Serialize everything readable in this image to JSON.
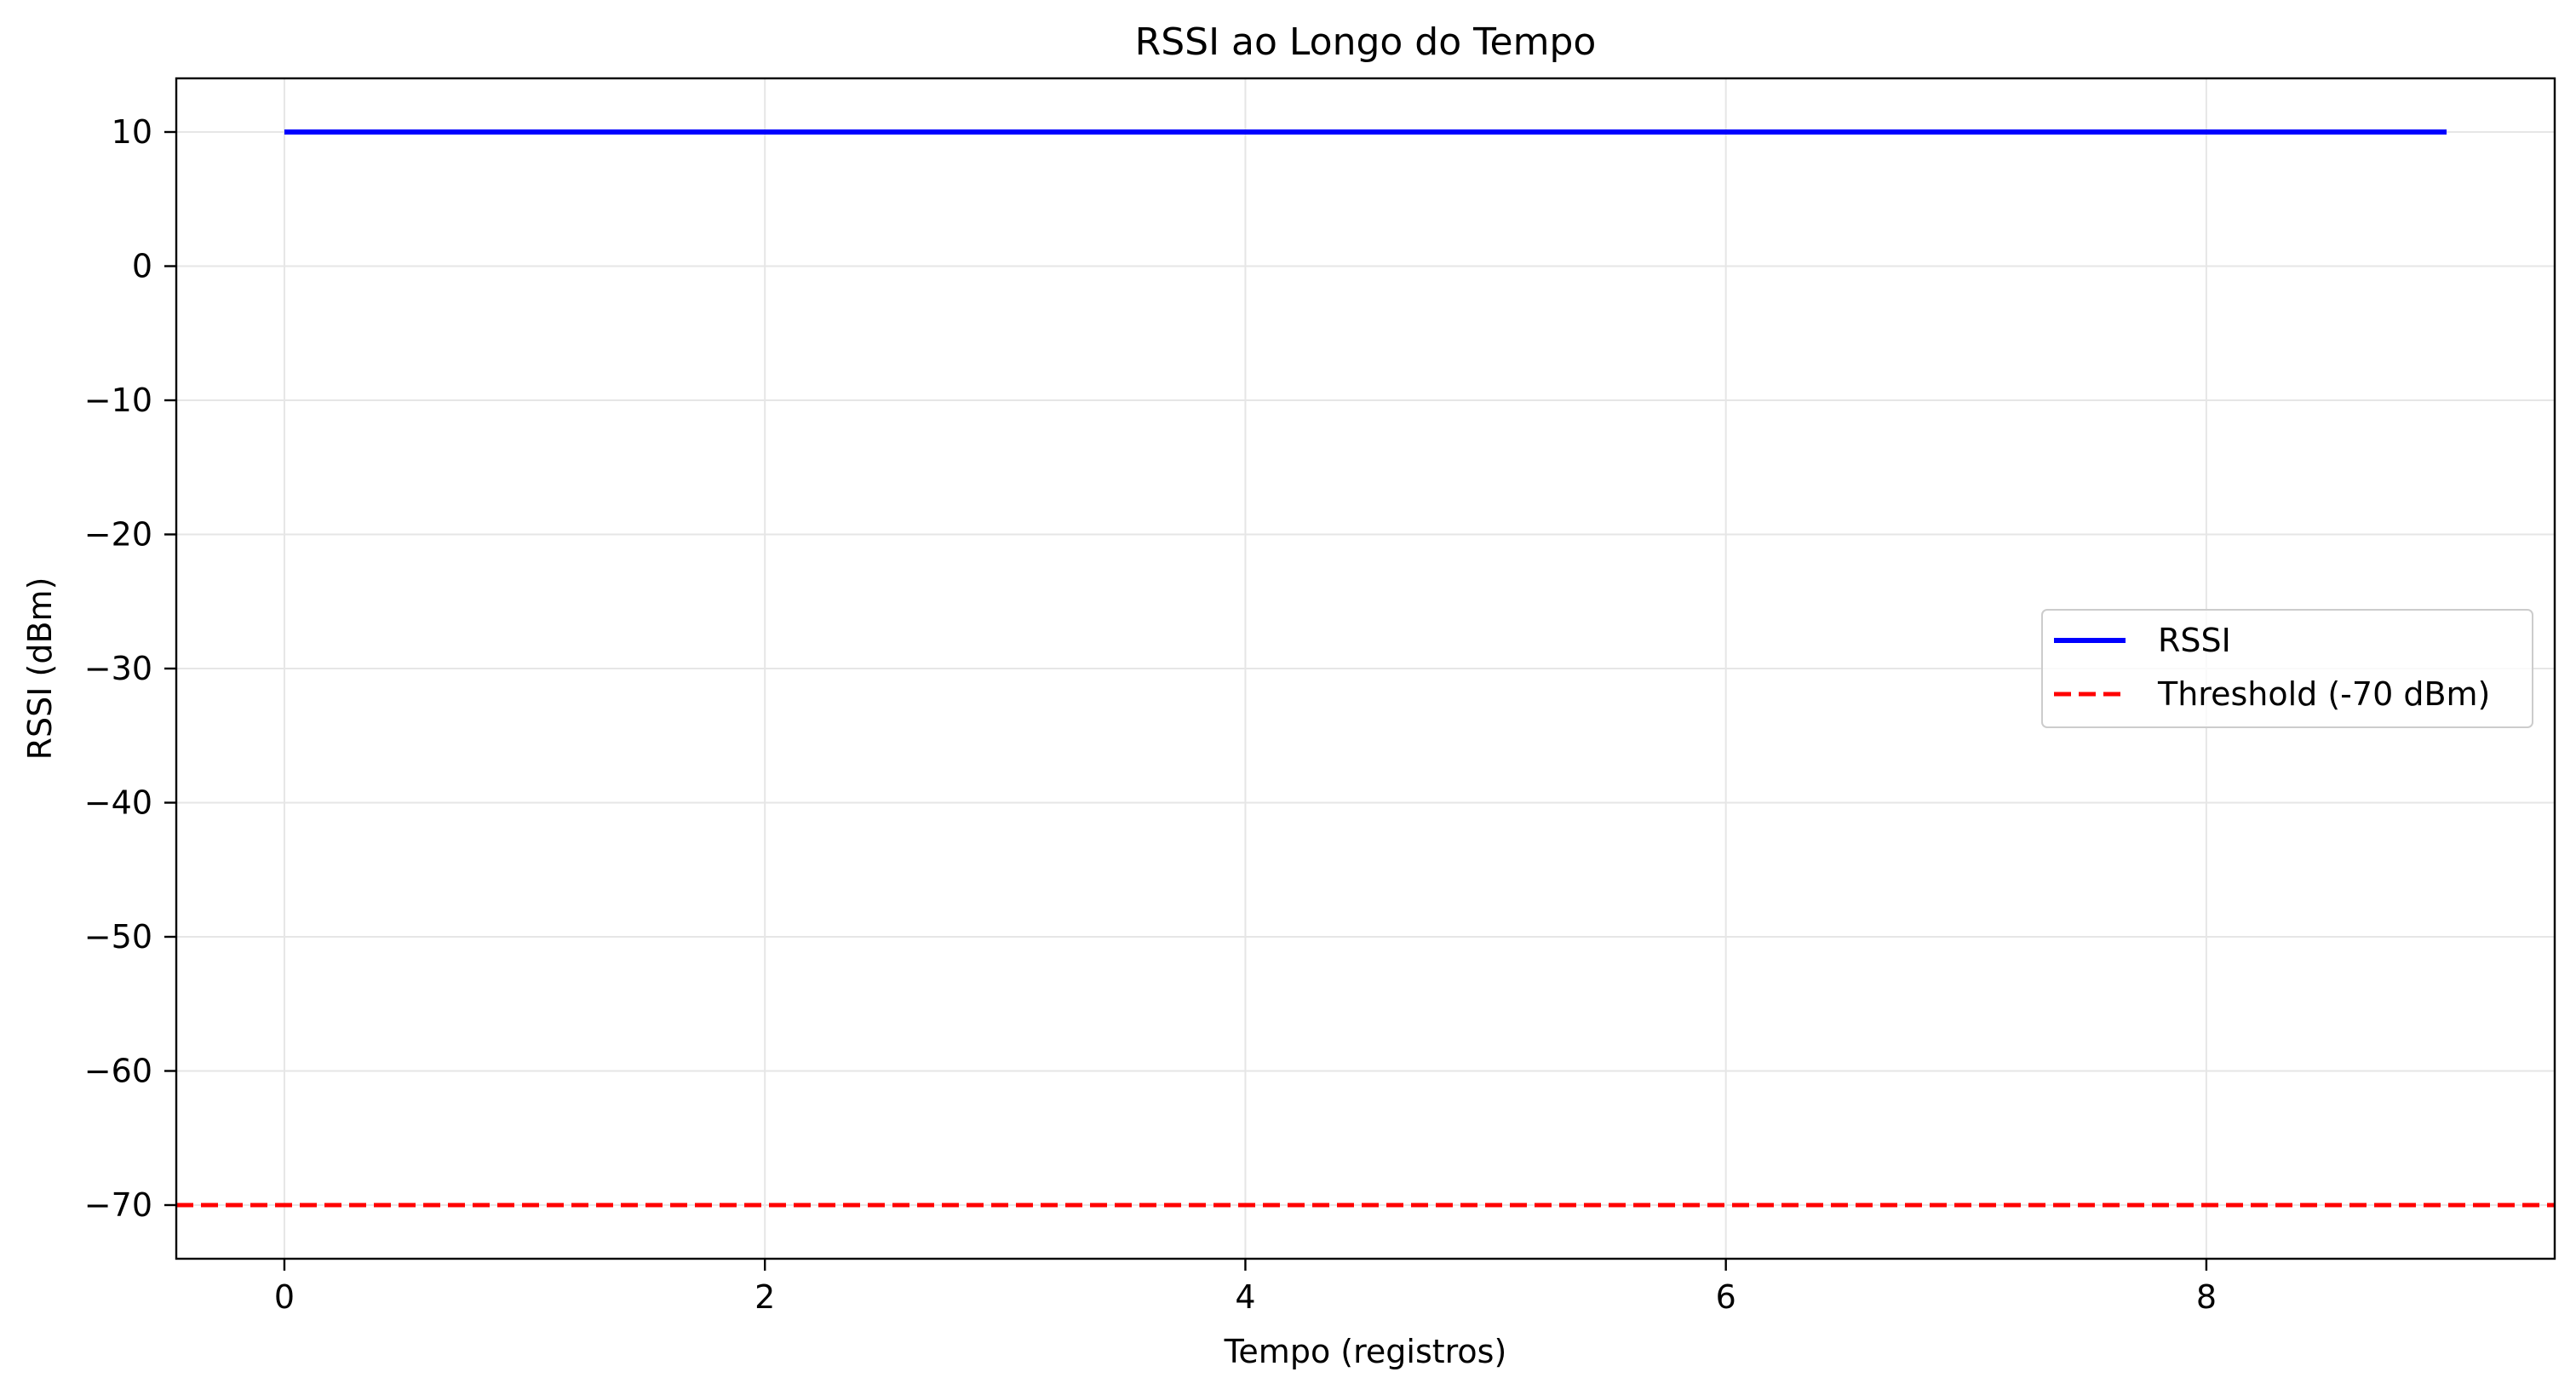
{
  "chart_data": {
    "type": "line",
    "title": "RSSI ao Longo do Tempo",
    "xlabel": "Tempo (registros)",
    "ylabel": "RSSI (dBm)",
    "xlim": [
      -0.45,
      9.45
    ],
    "ylim": [
      -74,
      14
    ],
    "xticks": [
      0,
      2,
      4,
      6,
      8
    ],
    "xtick_labels": [
      "0",
      "2",
      "4",
      "6",
      "8"
    ],
    "yticks": [
      10,
      0,
      -10,
      -20,
      -30,
      -40,
      -50,
      -60,
      -70
    ],
    "ytick_labels": [
      "10",
      "0",
      "−10",
      "−20",
      "−30",
      "−40",
      "−50",
      "−60",
      "−70"
    ],
    "grid": true,
    "legend_position": "center-right",
    "series": [
      {
        "name": "RSSI",
        "color": "#0000ff",
        "style": "solid",
        "x": [
          0,
          1,
          2,
          3,
          4,
          5,
          6,
          7,
          8,
          9
        ],
        "y": [
          10,
          10,
          10,
          10,
          10,
          10,
          10,
          10,
          10,
          10
        ]
      }
    ],
    "reference_lines": [
      {
        "name": "Threshold (-70 dBm)",
        "orientation": "horizontal",
        "y": -70,
        "color": "#ff0000",
        "style": "dashed"
      }
    ]
  }
}
